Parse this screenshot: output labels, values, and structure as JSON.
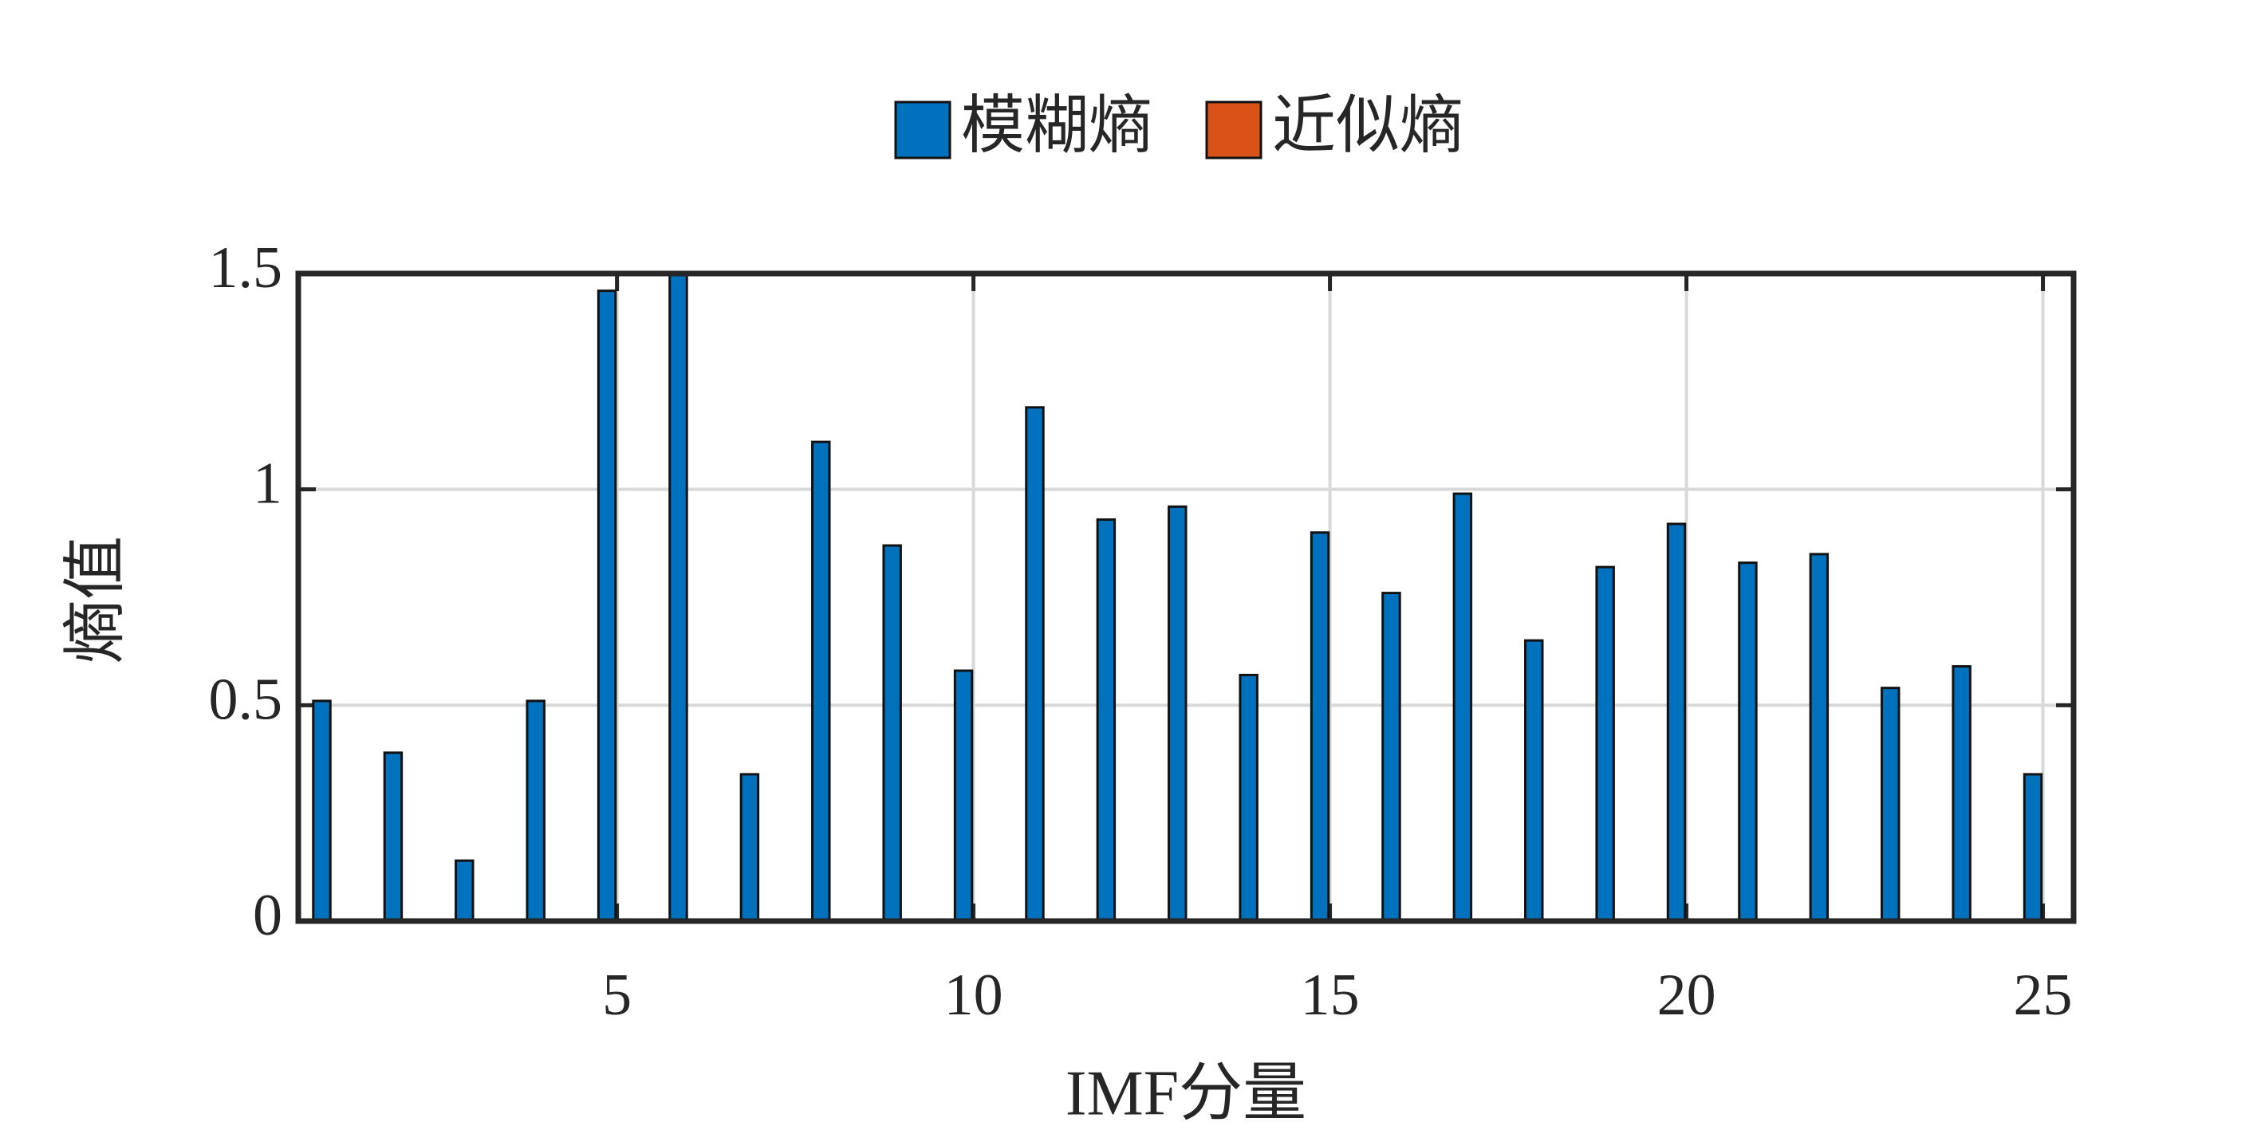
{
  "chart_data": {
    "type": "bar",
    "x": [
      1,
      2,
      3,
      4,
      5,
      6,
      7,
      8,
      9,
      10,
      11,
      12,
      13,
      14,
      15,
      16,
      17,
      18,
      19,
      20,
      21,
      22,
      23,
      24,
      25
    ],
    "series": [
      {
        "name": "模糊熵",
        "color": "#0072BD",
        "values": [
          0.51,
          0.39,
          0.14,
          0.51,
          1.46,
          1.5,
          0.34,
          1.11,
          0.87,
          0.58,
          1.19,
          0.93,
          0.96,
          0.57,
          0.9,
          0.76,
          0.99,
          0.65,
          0.82,
          0.92,
          0.83,
          0.85,
          0.54,
          0.59,
          0.34
        ]
      },
      {
        "name": "近似熵",
        "color": "#D95319",
        "values": [
          0,
          0,
          0,
          0,
          0,
          0,
          0,
          0,
          0,
          0,
          0,
          0,
          0,
          0,
          0,
          0,
          0,
          0,
          0,
          0,
          0,
          0,
          0,
          0,
          0
        ]
      }
    ],
    "xlabel": "IMF分量",
    "ylabel": "熵值",
    "xlim": [
      0.53,
      25.43
    ],
    "xticks": [
      5,
      10,
      15,
      20,
      25
    ],
    "ylim": [
      0,
      1.5
    ],
    "yticks": [
      0,
      0.5,
      1,
      1.5
    ],
    "grid": true,
    "legend": "top"
  }
}
